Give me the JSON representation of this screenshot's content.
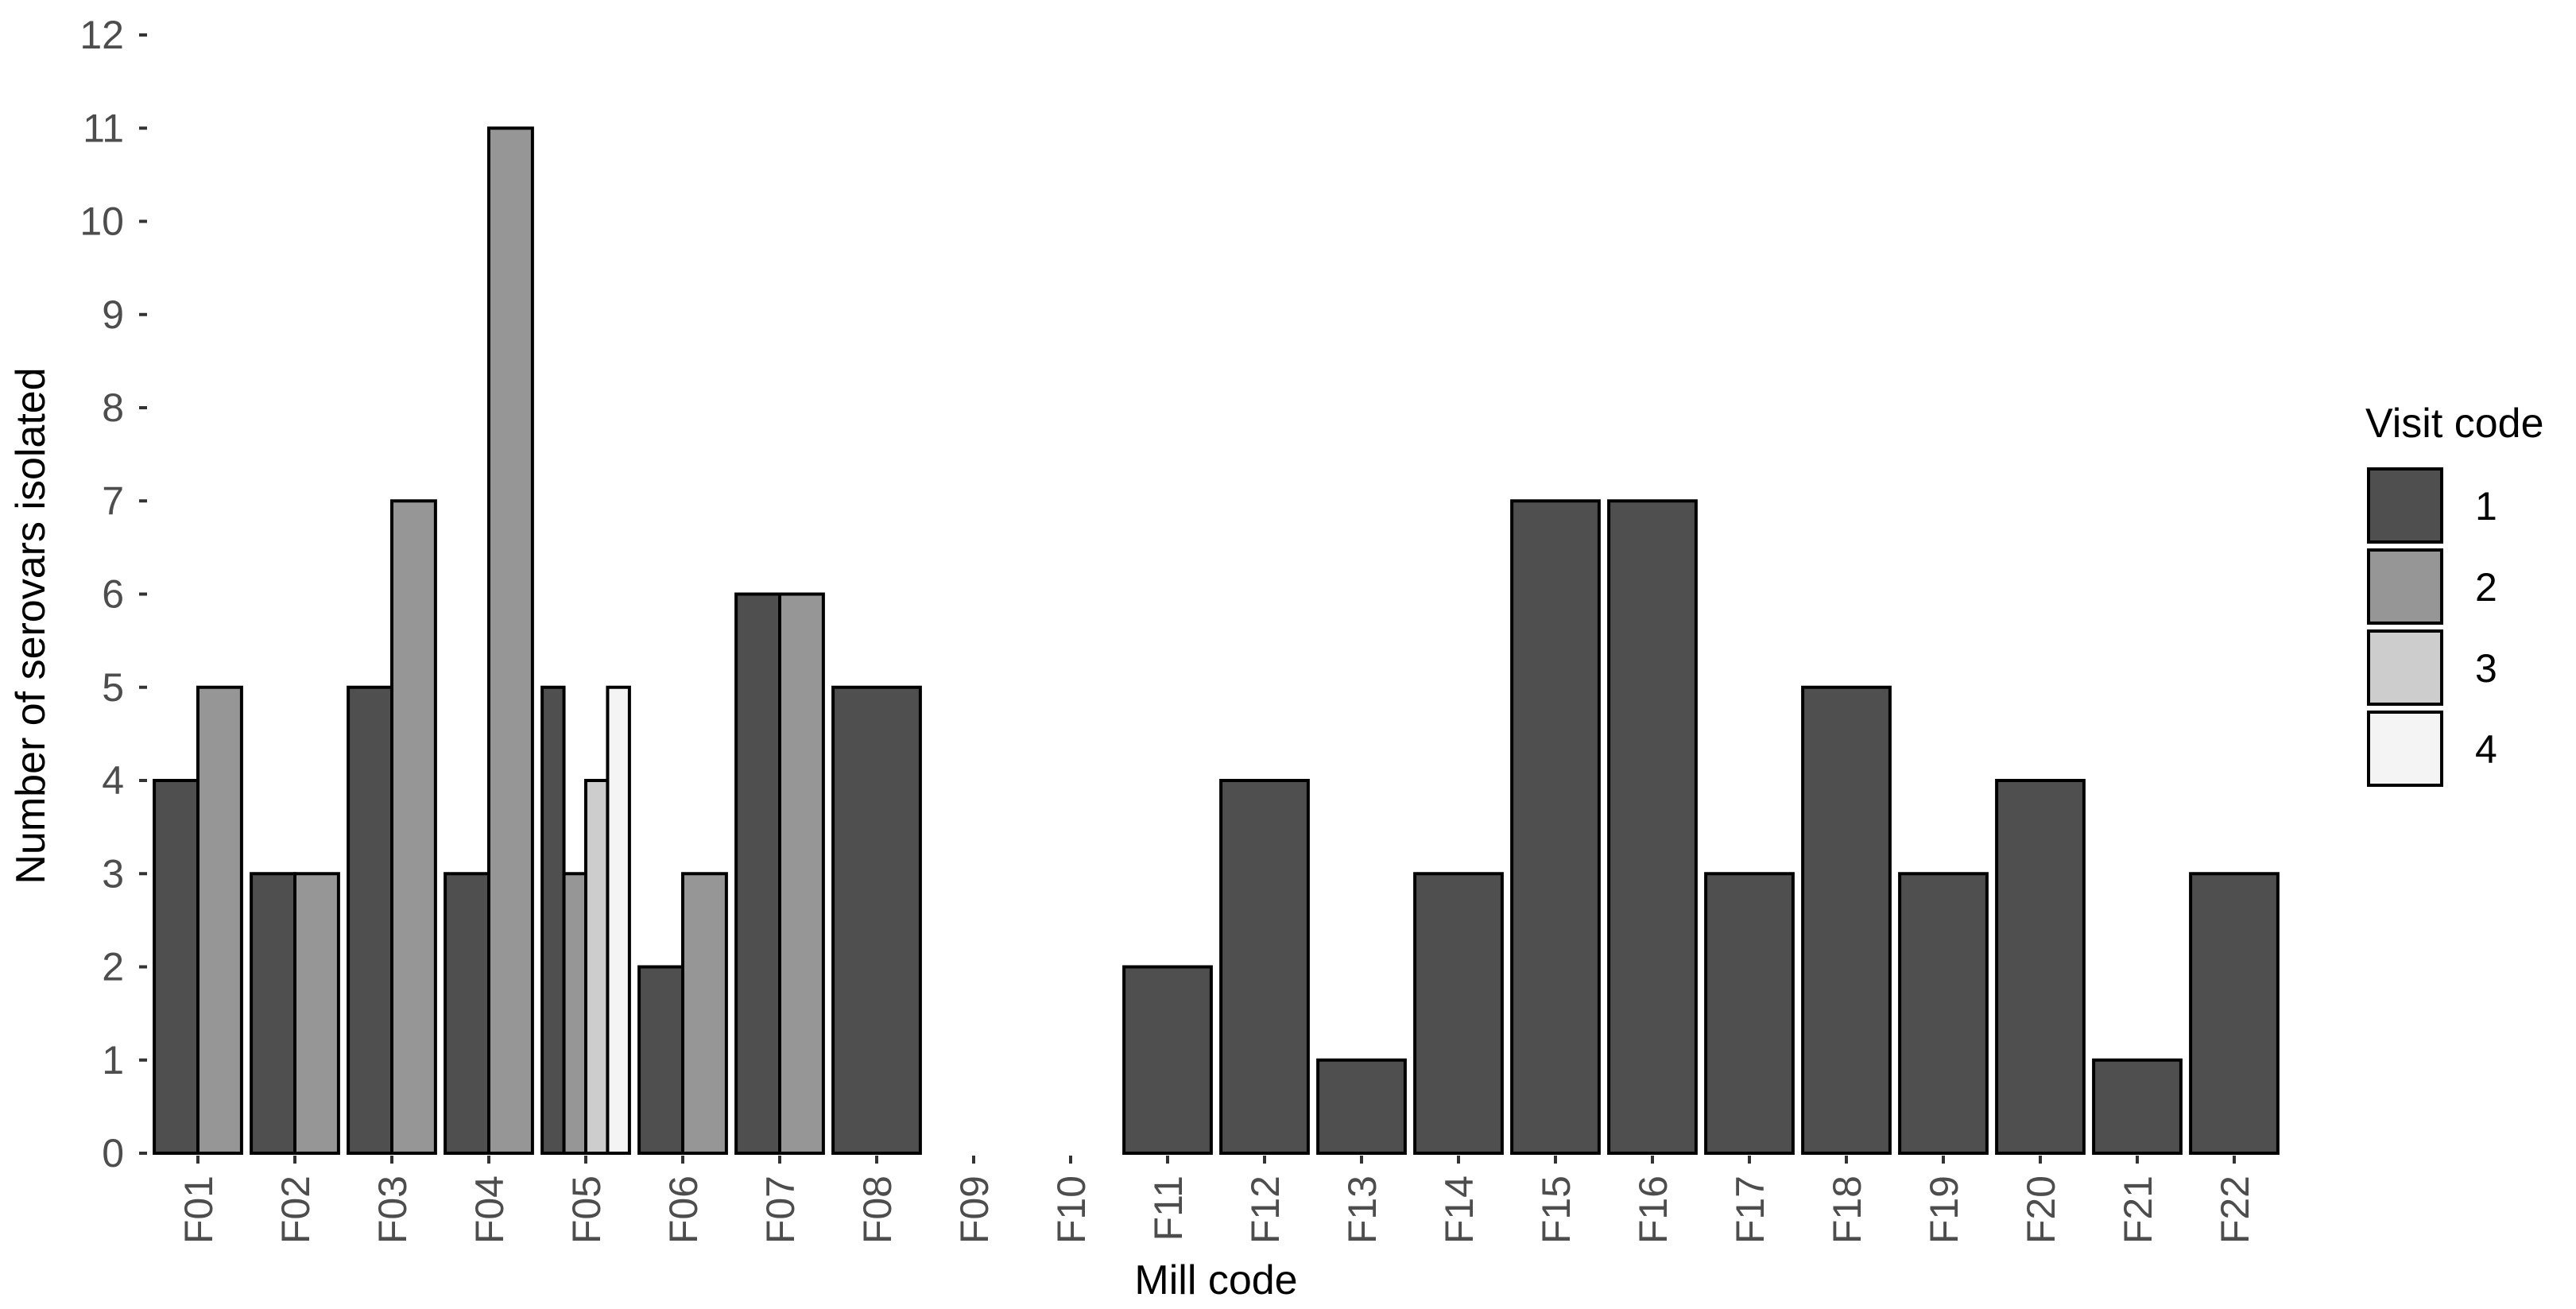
{
  "chart_data": {
    "type": "bar",
    "xlabel": "Mill code",
    "ylabel": "Number of serovars isolated",
    "ylim": [
      0,
      12
    ],
    "yticks": [
      0,
      1,
      2,
      3,
      4,
      5,
      6,
      7,
      8,
      9,
      10,
      11,
      12
    ],
    "grid": false,
    "legend_position": "right",
    "legend_title": "Visit code",
    "categories": [
      "F01",
      "F02",
      "F03",
      "F04",
      "F05",
      "F06",
      "F07",
      "F08",
      "F09",
      "F10",
      "F11",
      "F12",
      "F13",
      "F14",
      "F15",
      "F16",
      "F17",
      "F18",
      "F19",
      "F20",
      "F21",
      "F22"
    ],
    "series": [
      {
        "name": "1",
        "color": "#4f4f4f",
        "values": [
          4,
          3,
          5,
          3,
          5,
          2,
          6,
          5,
          0,
          0,
          2,
          4,
          1,
          3,
          7,
          7,
          3,
          5,
          3,
          4,
          1,
          3
        ]
      },
      {
        "name": "2",
        "color": "#969696",
        "values": [
          5,
          3,
          7,
          11,
          3,
          3,
          6,
          null,
          null,
          null,
          null,
          null,
          null,
          null,
          null,
          null,
          null,
          null,
          null,
          null,
          null,
          null
        ]
      },
      {
        "name": "3",
        "color": "#cdcdcd",
        "values": [
          null,
          null,
          null,
          null,
          4,
          null,
          null,
          null,
          null,
          null,
          null,
          null,
          null,
          null,
          null,
          null,
          null,
          null,
          null,
          null,
          null,
          null
        ]
      },
      {
        "name": "4",
        "color": "#f4f4f4",
        "values": [
          null,
          null,
          null,
          null,
          5,
          null,
          null,
          null,
          null,
          null,
          null,
          null,
          null,
          null,
          null,
          null,
          null,
          null,
          null,
          null,
          null,
          null
        ]
      }
    ]
  }
}
